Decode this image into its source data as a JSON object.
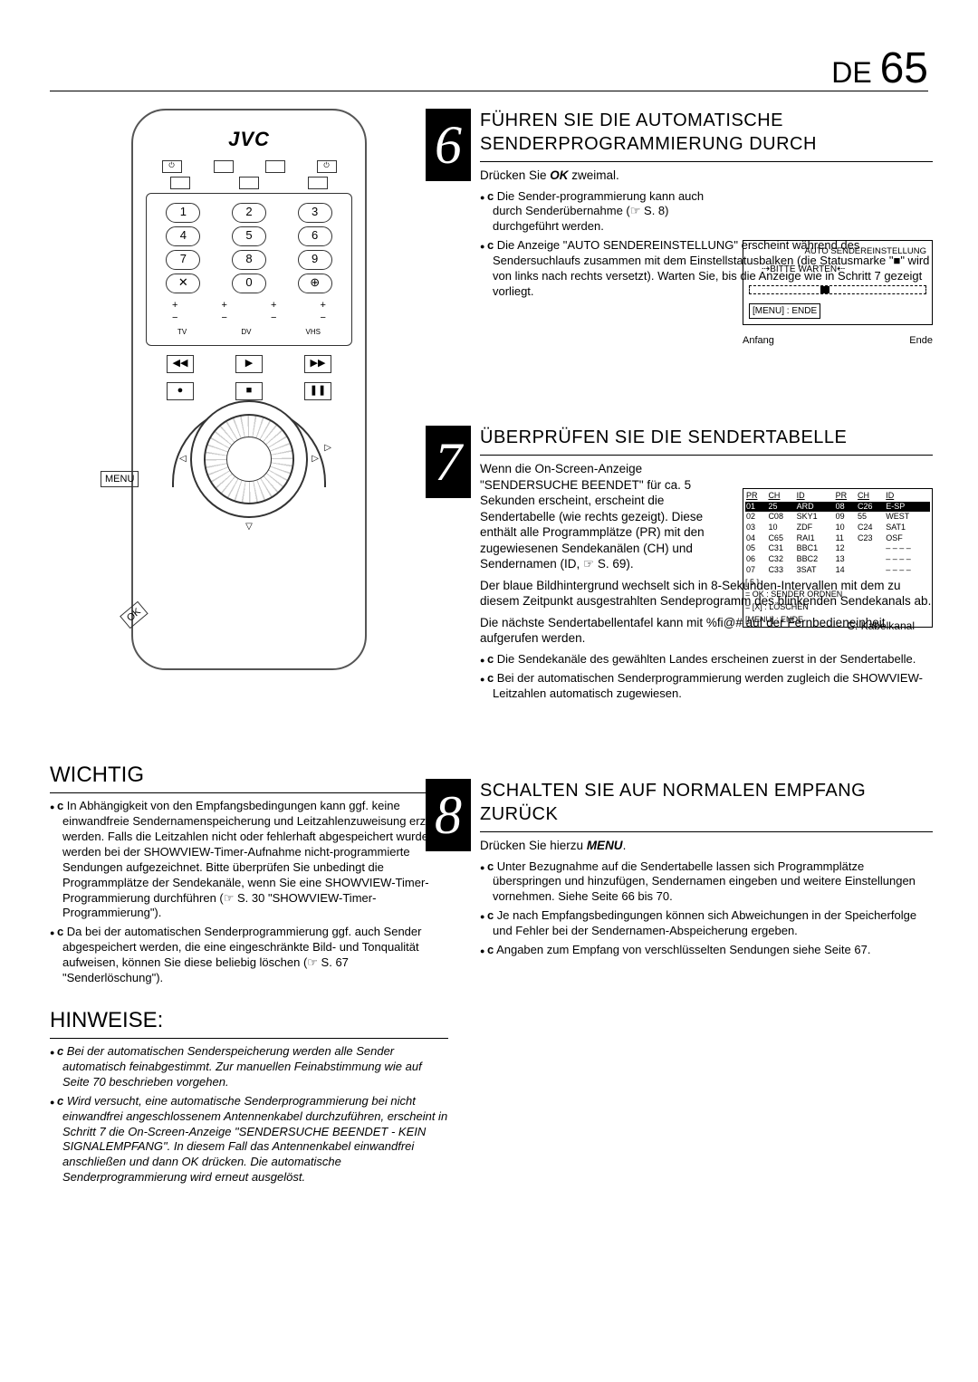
{
  "page": {
    "lang": "DE",
    "num": "65"
  },
  "brand": "JVC",
  "remote": {
    "menu": "MENU",
    "ok": "OK",
    "nums": [
      "1",
      "2",
      "3",
      "4",
      "5",
      "6",
      "7",
      "8",
      "9",
      "✕",
      "0",
      "⊕"
    ]
  },
  "step6": {
    "title": "FÜHREN SIE DIE AUTOMATISCHE SENDERPROGRAMMIERUNG DURCH",
    "line1a": "Drücken Sie ",
    "line1_ok": "OK",
    "line1b": " zweimal.",
    "b1_pre": "c",
    "b1": " Die Sender-programmierung kann auch durch Senderübernahme (☞ S. 8) durchgeführt werden.",
    "b2_pre": "c",
    "b2": " Die Anzeige \"AUTO SENDEREINSTELLUNG\" erscheint während des Sendersuchlaufs zusammen mit dem Einstellstatusbalken (die Statusmarke \"■\" wird von links nach rechts versetzt). Warten Sie, bis die Anzeige wie in Schritt 7 gezeigt vorliegt.",
    "diag": {
      "title": "AUTO SENDEREINSTELLUNG",
      "wait": "BITTE WARTEN",
      "menu_end": "[MENU] : ENDE",
      "start": "Anfang",
      "end": "Ende"
    }
  },
  "step7": {
    "title": "ÜBERPRÜFEN SIE DIE SENDERTABELLE",
    "p1": "Wenn die On-Screen-Anzeige \"SENDERSUCHE BEENDET\" für ca. 5 Sekunden erscheint, erscheint die Sendertabelle (wie rechts gezeigt). Diese enthält alle Programmplätze (PR) mit den zugewiesenen Sendekanälen (CH) und Sendernamen (ID, ☞ S. 69).",
    "p2": "Der blaue Bildhintergrund wechselt sich in 8-Sekunden-Intervallen mit dem zu diesem Zeitpunkt ausgestrahlten Sendeprogramm des blinkenden Sendekanals ab.",
    "p3": "Die nächste Sendertabellentafel kann mit %ﬁ@# auf der Fernbedieneinheit aufgerufen werden.",
    "b1_pre": "c",
    "b1": " Die Sendekanäle des gewählten Landes erscheinen zuerst in der Sendertabelle.",
    "b2_pre": "c",
    "b2": " Bei der automatischen Senderprogrammierung werden zugleich die SHOWVIEW-Leitzahlen automatisch zugewiesen.",
    "tbl": {
      "head": [
        "PR",
        "CH",
        "ID",
        "PR",
        "CH",
        "ID"
      ],
      "rows": [
        [
          "01",
          "25",
          "ARD",
          "08",
          "C26",
          "E-SP"
        ],
        [
          "02",
          "C08",
          "SKY1",
          "09",
          "55",
          "WEST"
        ],
        [
          "03",
          "10",
          "ZDF",
          "10",
          "C24",
          "SAT1"
        ],
        [
          "04",
          "C65",
          "RAI1",
          "11",
          "C23",
          "OSF"
        ],
        [
          "05",
          "C31",
          "BBC1",
          "12",
          "",
          "– – – –"
        ],
        [
          "06",
          "C32",
          "BBC2",
          "13",
          "",
          "– – – –"
        ],
        [
          "07",
          "C33",
          "3SAT",
          "14",
          "",
          "– – – –"
        ]
      ],
      "f1": "[ 5         ]",
      "f2": "= OK : SENDER ORDNEN",
      "f3": "= [X] : LÖSCHEN",
      "f4": "[MENU] : ENDE",
      "note": "C: Kabelkanal"
    }
  },
  "step8": {
    "title": "SCHALTEN SIE AUF NORMALEN EMPFANG ZURÜCK",
    "line1a": "Drücken Sie hierzu ",
    "line1_menu": "MENU",
    "line1b": ".",
    "b1_pre": "c",
    "b1": " Unter Bezugnahme auf die Sendertabelle lassen sich Programmplätze überspringen und hinzufügen, Sendernamen eingeben und weitere Einstellungen vornehmen. Siehe Seite 66 bis 70.",
    "b2_pre": "c",
    "b2": " Je nach Empfangsbedingungen können sich Abweichungen in der Speicherfolge und Fehler bei der Sendernamen-Abspeicherung ergeben.",
    "b3_pre": "c",
    "b3": " Angaben zum Empfang von verschlüsselten Sendungen siehe Seite 67."
  },
  "wichtig": {
    "title": "WICHTIG",
    "b1_pre": "c",
    "b1": " In Abhängigkeit von den Empfangsbedingungen kann ggf. keine einwandfreie Sendernamenspeicherung und Leitzahlenzuweisung erzielt werden. Falls die Leitzahlen nicht oder fehlerhaft abgespeichert wurden, werden bei der SHOWVIEW-Timer-Aufnahme nicht-programmierte Sendungen aufgezeichnet. Bitte überprüfen Sie unbedingt die Programmplätze der Sendekanäle, wenn Sie eine SHOWVIEW-Timer-Programmierung durchführen (☞ S. 30 \"SHOWVIEW-Timer-Programmierung\").",
    "b2_pre": "c",
    "b2": " Da bei der automatischen Senderprogrammierung ggf. auch Sender abgespeichert werden, die eine eingeschränkte Bild- und Tonqualität aufweisen, können Sie diese beliebig löschen (☞ S. 67 \"Senderlöschung\")."
  },
  "hinweise": {
    "title": "HINWEISE:",
    "b1_pre": "c",
    "b1": " Bei der automatischen Senderspeicherung werden alle Sender automatisch feinabgestimmt. Zur manuellen Feinabstimmung wie auf Seite 70 beschrieben vorgehen.",
    "b2_pre": "c",
    "b2": " Wird versucht, eine automatische Senderprogrammierung bei nicht einwandfrei angeschlossenem Antennenkabel durchzuführen, erscheint in Schritt 7 die On-Screen-Anzeige \"SENDERSUCHE BEENDET - KEIN SIGNALEMPFANG\". In diesem Fall das Antennenkabel einwandfrei anschließen und dann OK drücken. Die automatische Senderprogrammierung wird erneut ausgelöst."
  }
}
